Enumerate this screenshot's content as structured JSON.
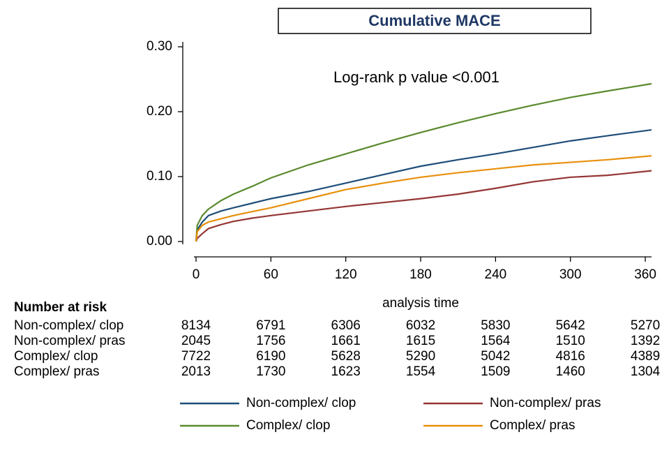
{
  "chart_data": {
    "type": "line",
    "title": "Cumulative MACE",
    "annotation": "Log-rank p value <0.001",
    "xlabel": "analysis time",
    "x": [
      0,
      1,
      5,
      10,
      20,
      30,
      45,
      60,
      90,
      120,
      150,
      180,
      210,
      240,
      270,
      300,
      330,
      365
    ],
    "series": [
      {
        "name": "Non-complex/ clop",
        "color": "#1f4e79",
        "values": [
          0,
          0.018,
          0.03,
          0.04,
          0.047,
          0.052,
          0.059,
          0.066,
          0.077,
          0.09,
          0.103,
          0.116,
          0.126,
          0.135,
          0.145,
          0.155,
          0.163,
          0.172
        ]
      },
      {
        "name": "Non-complex/ pras",
        "color": "#943634",
        "values": [
          0,
          0.005,
          0.012,
          0.02,
          0.026,
          0.031,
          0.036,
          0.04,
          0.047,
          0.054,
          0.06,
          0.066,
          0.073,
          0.082,
          0.092,
          0.099,
          0.102,
          0.109
        ]
      },
      {
        "name": "Complex/ clop",
        "color": "#5a8a2e",
        "values": [
          0,
          0.025,
          0.04,
          0.05,
          0.063,
          0.073,
          0.085,
          0.098,
          0.118,
          0.135,
          0.152,
          0.168,
          0.183,
          0.197,
          0.21,
          0.222,
          0.232,
          0.243
        ]
      },
      {
        "name": "Complex/ pras",
        "color": "#e8900c",
        "values": [
          0,
          0.015,
          0.025,
          0.03,
          0.035,
          0.04,
          0.046,
          0.052,
          0.066,
          0.08,
          0.09,
          0.099,
          0.106,
          0.112,
          0.118,
          0.122,
          0.126,
          0.132
        ]
      }
    ],
    "xlim": [
      0,
      365
    ],
    "xticks": [
      0,
      60,
      120,
      180,
      240,
      300,
      360
    ],
    "ylim": [
      0,
      0.3
    ],
    "yticks": [
      {
        "value": 0,
        "label": "0.00"
      },
      {
        "value": 0.1,
        "label": "0.10"
      },
      {
        "value": 0.2,
        "label": "0.20"
      },
      {
        "value": 0.3,
        "label": "0.30"
      }
    ],
    "legend": "bottom",
    "risk_table": {
      "title": "Number at risk",
      "rows": [
        {
          "label": "Non-complex/ clop",
          "values": [
            8134,
            6791,
            6306,
            6032,
            5830,
            5642,
            5270
          ]
        },
        {
          "label": "Non-complex/ pras",
          "values": [
            2045,
            1756,
            1661,
            1615,
            1564,
            1510,
            1392
          ]
        },
        {
          "label": "Complex/ clop",
          "values": [
            7722,
            6190,
            5628,
            5290,
            5042,
            4816,
            4389
          ]
        },
        {
          "label": "Complex/ pras",
          "values": [
            2013,
            1730,
            1623,
            1554,
            1509,
            1460,
            1304
          ]
        }
      ]
    }
  }
}
